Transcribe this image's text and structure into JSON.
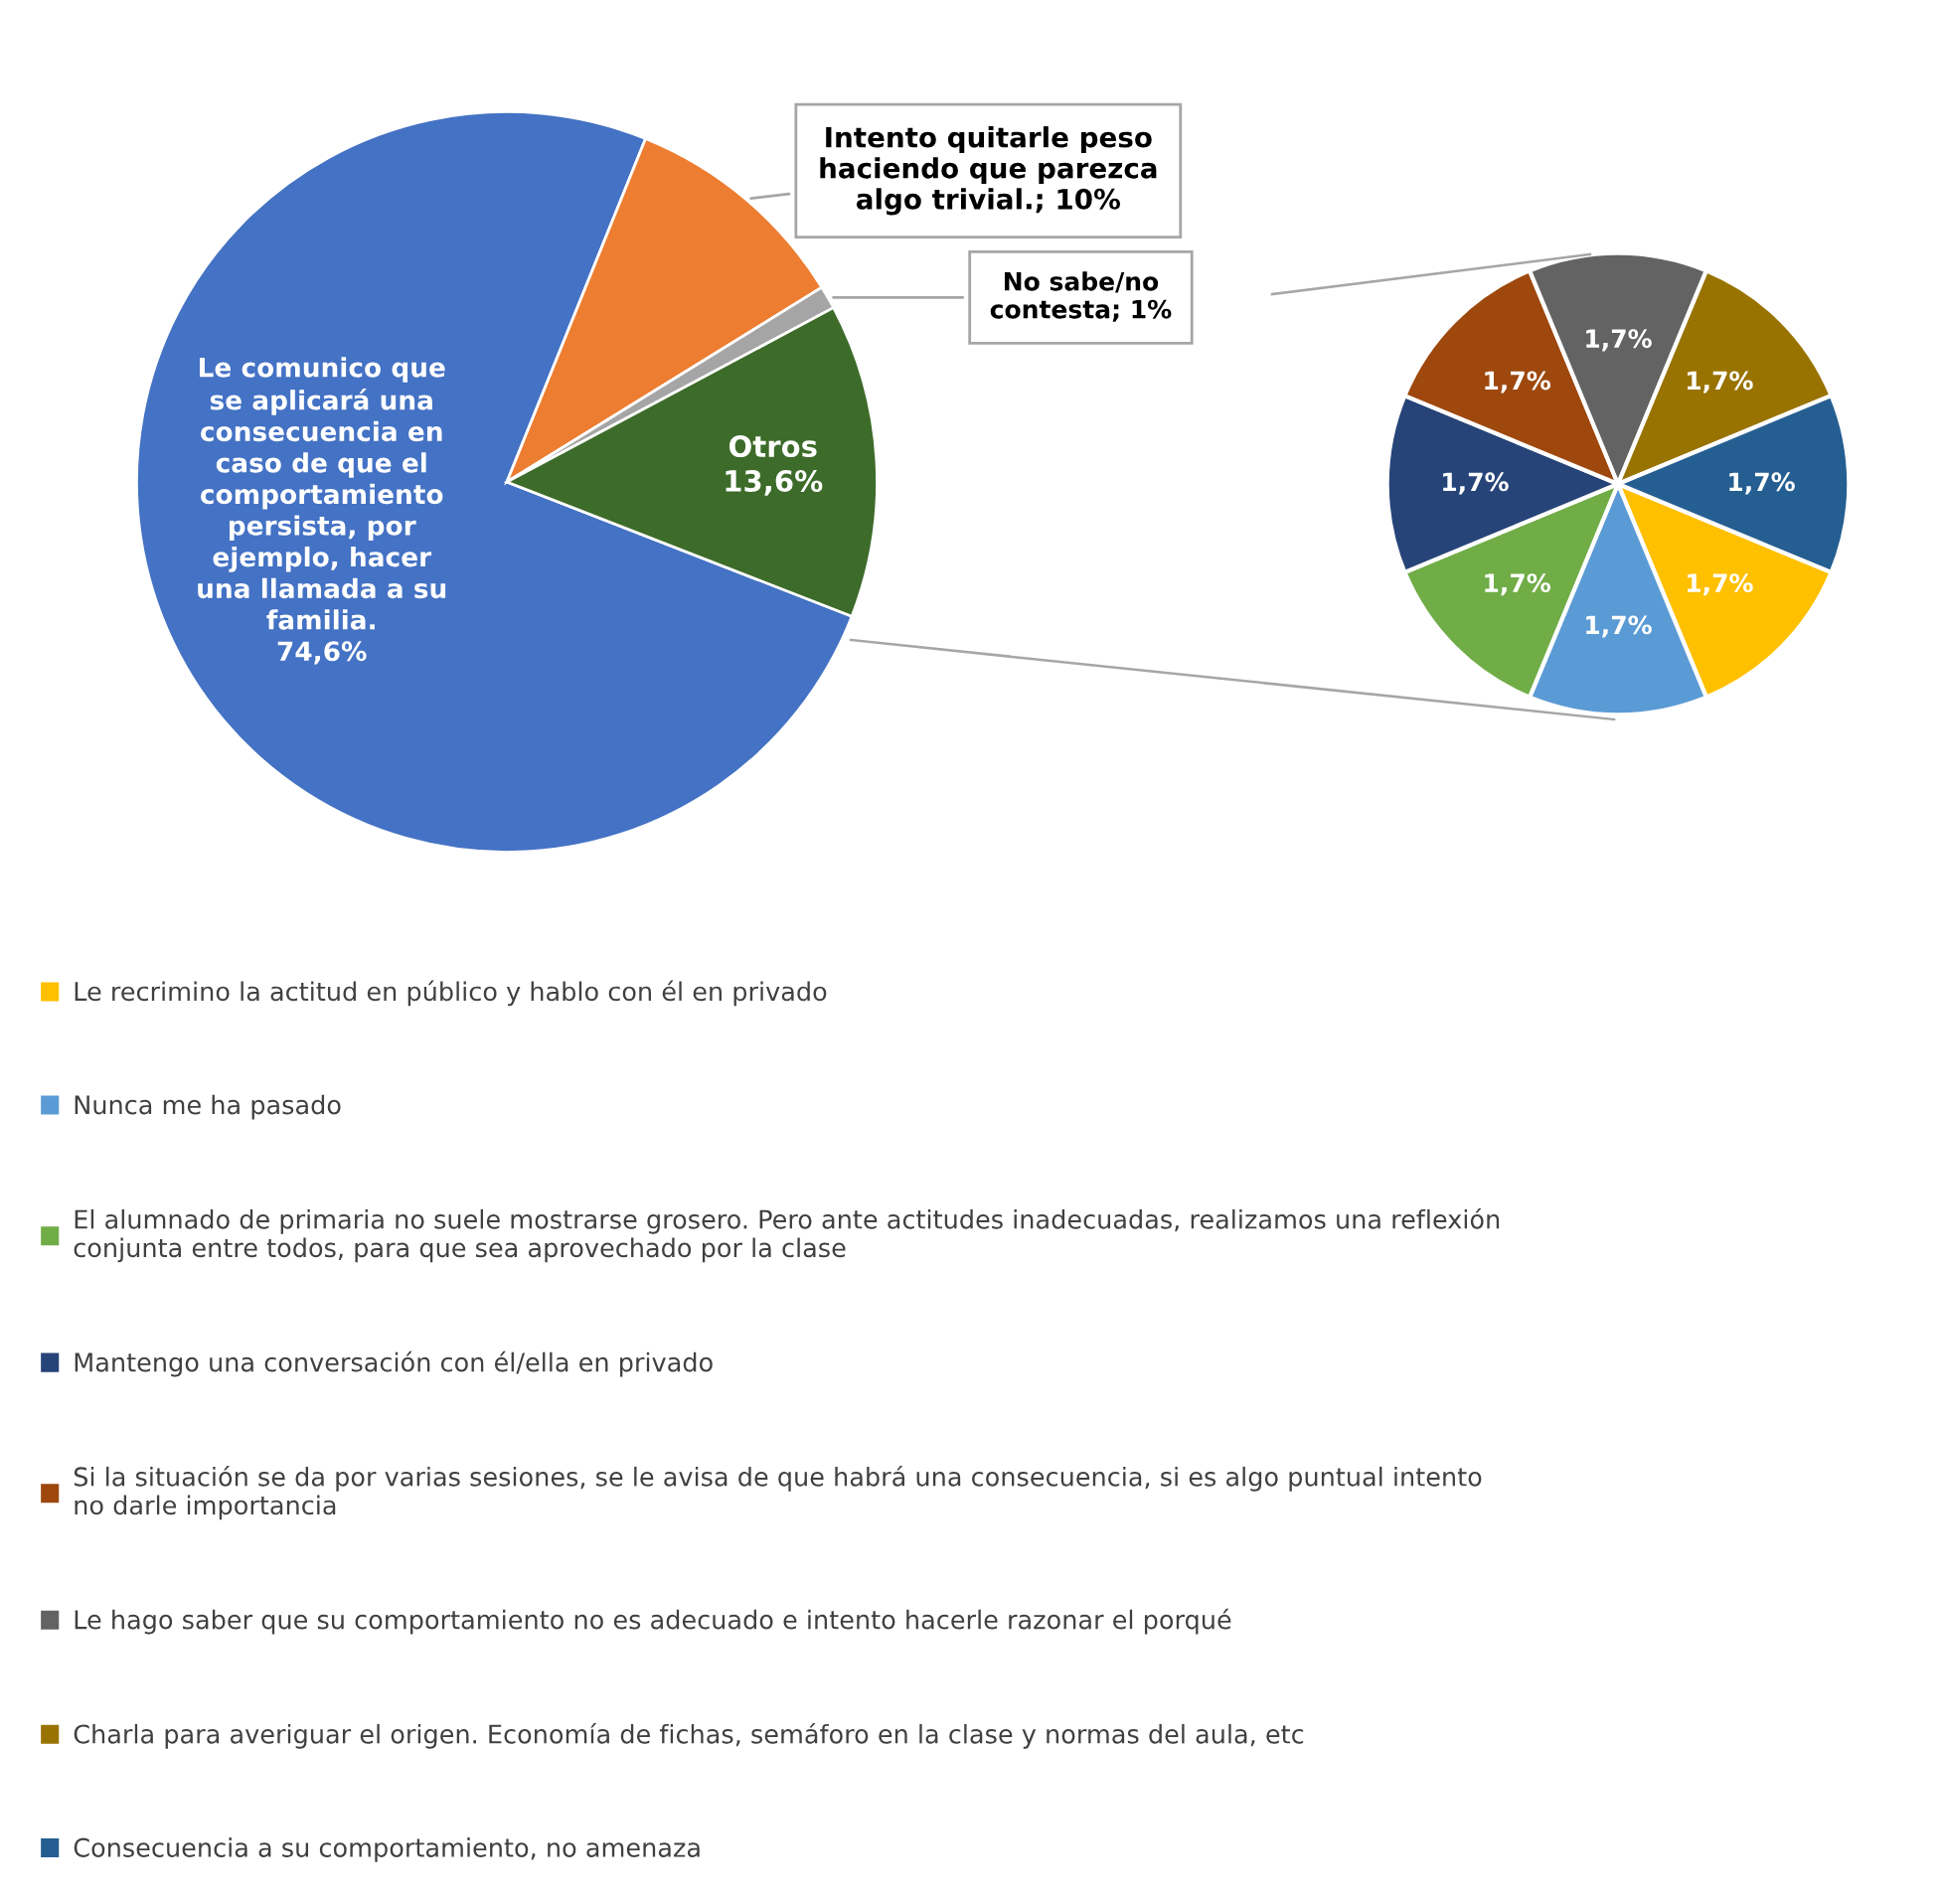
{
  "chart_data": [
    {
      "type": "pie",
      "categories": [
        "Le comunico que se aplicará una consecuencia en caso de que el comportamiento persista, por ejemplo, hacer una llamada a su familia.",
        "Intento quitarle peso haciendo que parezca algo trivial.",
        "No sabe/no contesta",
        "Otros"
      ],
      "values": [
        74.6,
        10,
        1,
        13.6
      ],
      "value_labels": [
        "74,6%",
        "10%",
        "1%",
        "13,6%"
      ],
      "colors": [
        "#4472c4",
        "#ed7d31",
        "#a5a5a5",
        "#3d6b2a"
      ]
    },
    {
      "type": "pie",
      "categories": [
        "Le recrimino la actitud en público y hablo con él en privado",
        "Nunca me ha pasado",
        "El alumnado de primaria no suele mostrarse grosero. Pero ante actitudes inadecuadas, realizamos una reflexión conjunta entre todos, para que sea aprovechado por la clase",
        "Mantengo una conversación con él/ella en privado",
        "Si la situación se da por varias sesiones, se le avisa de que habrá una consecuencia, si es algo puntual intento no darle importancia",
        "Le hago saber que su comportamiento no es adecuado e intento hacerle razonar el porqué",
        "Charla para averiguar el origen. Economía de fichas, semáforo en la clase y normas del aula, etc",
        "Consecuencia a su comportamiento, no amenaza"
      ],
      "values": [
        1.7,
        1.7,
        1.7,
        1.7,
        1.7,
        1.7,
        1.7,
        1.7
      ],
      "value_labels": [
        "1,7%",
        "1,7%",
        "1,7%",
        "1,7%",
        "1,7%",
        "1,7%",
        "1,7%",
        "1,7%"
      ],
      "colors": [
        "#ffc000",
        "#5b9bd5",
        "#70ad47",
        "#264478",
        "#9e480e",
        "#636363",
        "#997300",
        "#255e91"
      ],
      "legend": "bottom"
    }
  ]
}
